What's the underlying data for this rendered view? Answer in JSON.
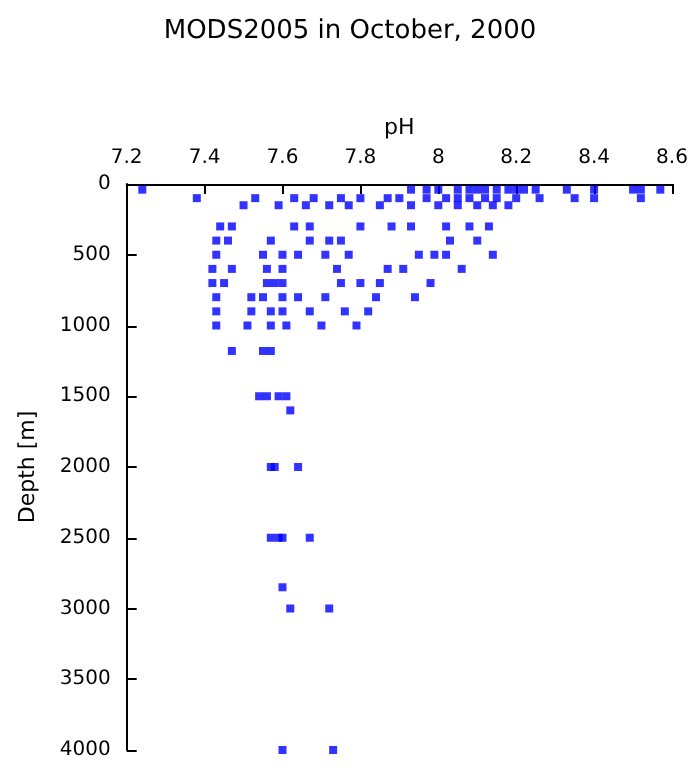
{
  "chart_data": {
    "type": "scatter",
    "title": "MODS2005 in October, 2000",
    "xlabel": "pH",
    "ylabel": "Depth [m]",
    "marker": "square",
    "grid": false,
    "xlim": [
      7.2,
      8.6
    ],
    "xticks": [
      7.2,
      7.4,
      7.6,
      7.8,
      8,
      8.2,
      8.4,
      8.6
    ],
    "ylim": [
      4000,
      0
    ],
    "yticks": [
      0,
      500,
      1000,
      1500,
      2000,
      2500,
      3000,
      3500,
      4000
    ],
    "series": [
      {
        "color": "#0000ff",
        "x": [
          7.24,
          7.93,
          7.97,
          8.0,
          8.05,
          8.08,
          8.1,
          8.12,
          8.15,
          8.18,
          8.2,
          8.22,
          8.25,
          8.33,
          8.4,
          8.5,
          8.52,
          8.57,
          7.38,
          7.53,
          7.63,
          7.68,
          7.75,
          7.8,
          7.87,
          7.9,
          7.97,
          8.02,
          8.05,
          8.08,
          8.12,
          8.15,
          8.2,
          8.26,
          8.35,
          8.4,
          8.52,
          7.5,
          7.59,
          7.66,
          7.72,
          7.77,
          7.85,
          7.93,
          8.0,
          8.05,
          8.1,
          8.14,
          8.18,
          7.44,
          7.47,
          7.63,
          7.67,
          7.8,
          7.88,
          7.93,
          8.02,
          8.08,
          8.13,
          7.43,
          7.46,
          7.57,
          7.67,
          7.72,
          7.75,
          8.03,
          8.1,
          7.43,
          7.55,
          7.6,
          7.64,
          7.71,
          7.77,
          7.95,
          7.99,
          8.02,
          8.14,
          7.42,
          7.47,
          7.56,
          7.6,
          7.74,
          7.87,
          7.91,
          8.06,
          7.42,
          7.45,
          7.56,
          7.58,
          7.6,
          7.75,
          7.8,
          7.85,
          7.98,
          7.43,
          7.52,
          7.55,
          7.6,
          7.64,
          7.71,
          7.84,
          7.94,
          7.43,
          7.52,
          7.57,
          7.6,
          7.67,
          7.76,
          7.82,
          7.43,
          7.51,
          7.57,
          7.61,
          7.7,
          7.79,
          7.47,
          7.55,
          7.57,
          7.54,
          7.56,
          7.59,
          7.61,
          7.62,
          7.57,
          7.58,
          7.64,
          7.57,
          7.59,
          7.6,
          7.67,
          7.6,
          7.62,
          7.72,
          7.6,
          7.73
        ],
        "values": [
          40,
          40,
          40,
          40,
          40,
          40,
          40,
          40,
          40,
          40,
          40,
          40,
          40,
          40,
          40,
          40,
          40,
          40,
          100,
          100,
          100,
          100,
          100,
          100,
          100,
          100,
          100,
          100,
          100,
          100,
          100,
          100,
          100,
          100,
          100,
          100,
          100,
          150,
          150,
          150,
          150,
          150,
          150,
          150,
          150,
          150,
          150,
          150,
          150,
          300,
          300,
          300,
          300,
          300,
          300,
          300,
          300,
          300,
          300,
          400,
          400,
          400,
          400,
          400,
          400,
          400,
          400,
          500,
          500,
          500,
          500,
          500,
          500,
          500,
          500,
          500,
          500,
          600,
          600,
          600,
          600,
          600,
          600,
          600,
          600,
          700,
          700,
          700,
          700,
          700,
          700,
          700,
          700,
          700,
          800,
          800,
          800,
          800,
          800,
          800,
          800,
          800,
          900,
          900,
          900,
          900,
          900,
          900,
          900,
          1000,
          1000,
          1000,
          1000,
          1000,
          1000,
          1180,
          1180,
          1180,
          1500,
          1500,
          1500,
          1500,
          1600,
          2000,
          2000,
          2000,
          2500,
          2500,
          2500,
          2500,
          2850,
          3000,
          3000,
          4000,
          4000
        ]
      }
    ]
  }
}
